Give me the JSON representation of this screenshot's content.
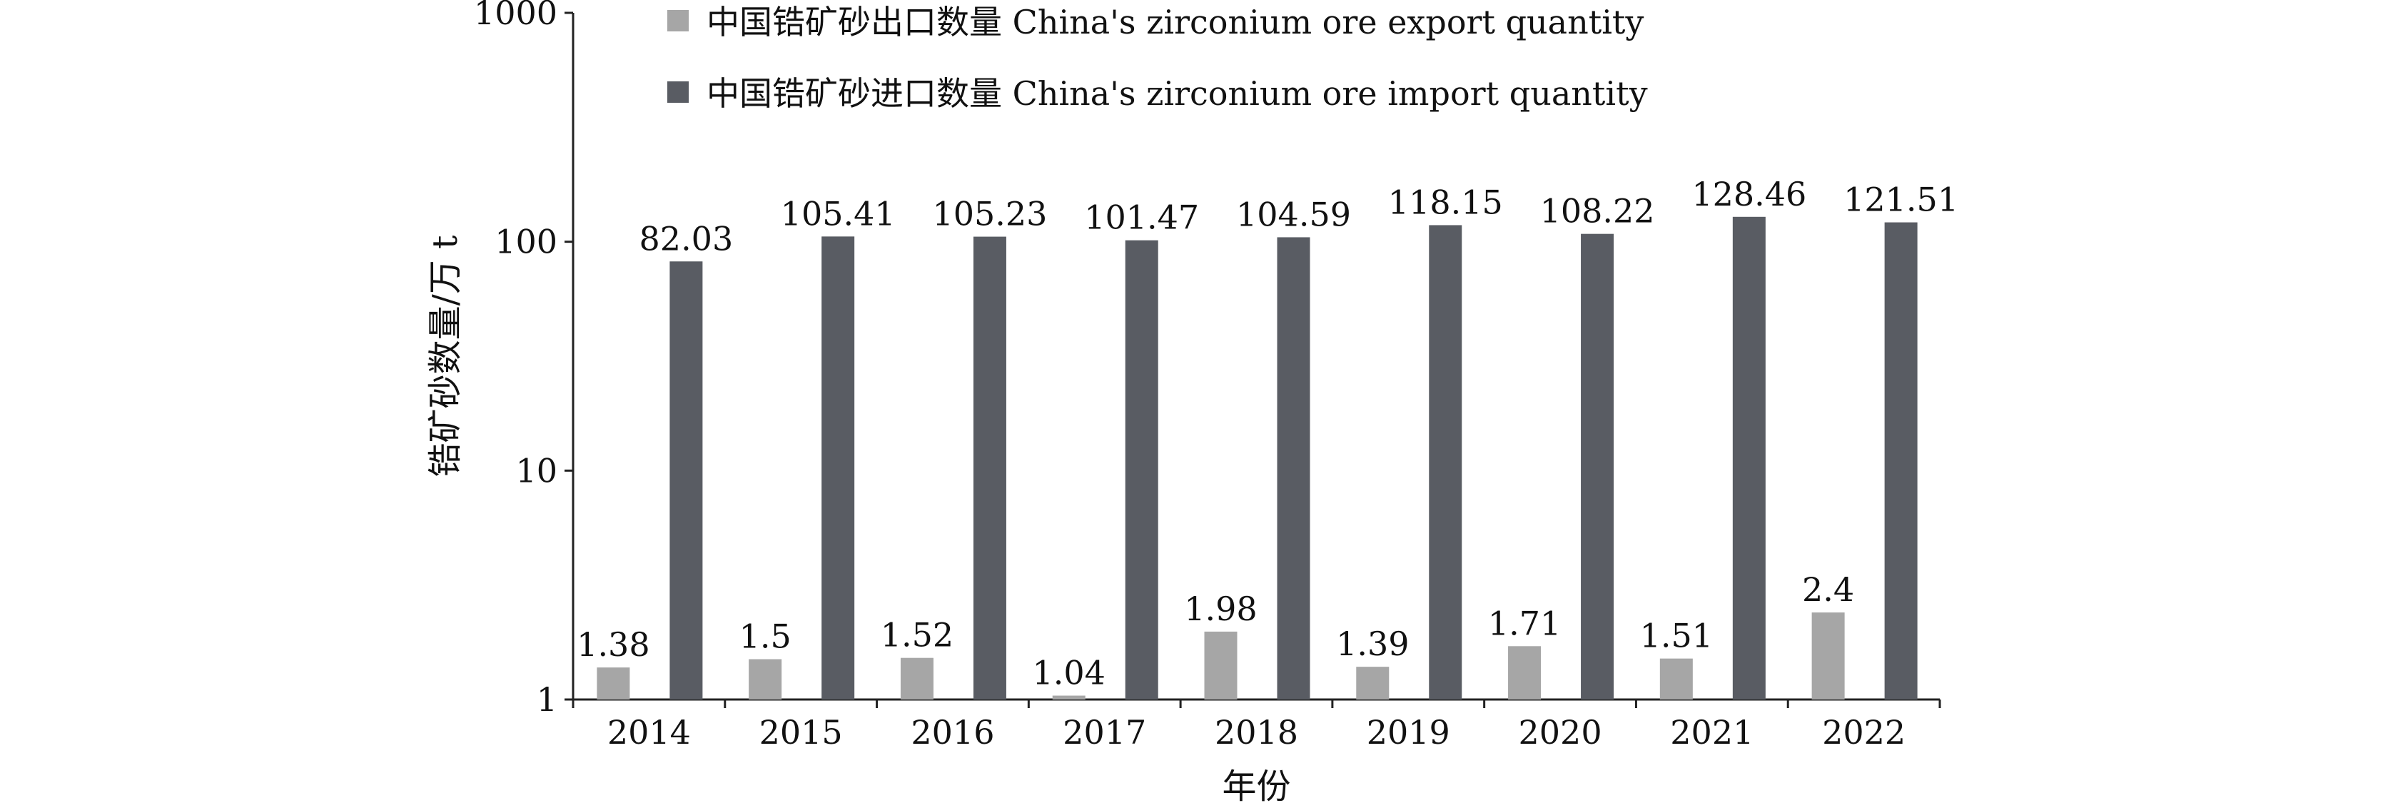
{
  "chart_data": {
    "type": "bar",
    "title": "",
    "xlabel": "年份",
    "ylabel": "锆矿砂数量/万 t",
    "yscale": "log",
    "ylim": [
      1,
      1000
    ],
    "yticks": [
      "1",
      "10",
      "100",
      "1000"
    ],
    "categories": [
      "2014",
      "2015",
      "2016",
      "2017",
      "2018",
      "2019",
      "2020",
      "2021",
      "2022"
    ],
    "series": [
      {
        "name": "中国锆矿砂出口数量 China's zirconium ore export quantity",
        "color": "#a6a6a6",
        "values": [
          1.38,
          1.5,
          1.52,
          1.04,
          1.98,
          1.39,
          1.71,
          1.51,
          2.4
        ],
        "labels": [
          "1.38",
          "1.5",
          "1.52",
          "1.04",
          "1.98",
          "1.39",
          "1.71",
          "1.51",
          "2.4"
        ]
      },
      {
        "name": "中国锆矿砂进口数量 China's zirconium ore import quantity",
        "color": "#595c63",
        "values": [
          82.03,
          105.41,
          105.23,
          101.47,
          104.59,
          118.15,
          108.22,
          128.46,
          121.51
        ],
        "labels": [
          "82.03",
          "105.41",
          "105.23",
          "101.47",
          "104.59",
          "118.15",
          "108.22",
          "128.46",
          "121.51"
        ]
      }
    ],
    "grid": false,
    "legend_position": "top"
  }
}
